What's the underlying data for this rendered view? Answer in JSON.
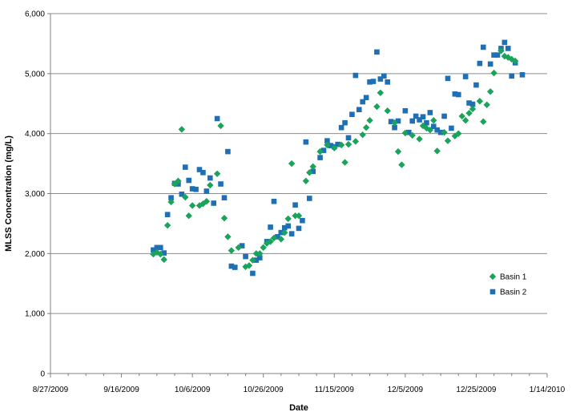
{
  "chart_data": {
    "type": "scatter",
    "title": "",
    "xlabel": "Date",
    "ylabel": "MLSS Concentration (mg/L)",
    "xlim": [
      "2009-08-27",
      "2010-01-14"
    ],
    "ylim": [
      0,
      6000
    ],
    "x_tick_labels": [
      "8/27/2009",
      "9/16/2009",
      "10/6/2009",
      "10/26/2009",
      "11/15/2009",
      "12/5/2009",
      "12/25/2009",
      "1/14/2010"
    ],
    "y_tick_labels": [
      "0",
      "1,000",
      "2,000",
      "3,000",
      "4,000",
      "5,000",
      "6,000"
    ],
    "grid": {
      "horizontal": true,
      "vertical": false
    },
    "legend_position": "right",
    "series": [
      {
        "name": "Basin 1",
        "color": "#1aa35a",
        "marker": "diamond",
        "points": [
          [
            "2009-09-25",
            1990
          ],
          [
            "2009-09-26",
            2020
          ],
          [
            "2009-09-27",
            1990
          ],
          [
            "2009-09-28",
            1900
          ],
          [
            "2009-09-29",
            2470
          ],
          [
            "2009-09-30",
            2860
          ],
          [
            "2009-10-01",
            3160
          ],
          [
            "2009-10-02",
            3210
          ],
          [
            "2009-10-03",
            4070
          ],
          [
            "2009-10-04",
            2940
          ],
          [
            "2009-10-05",
            2630
          ],
          [
            "2009-10-06",
            2800
          ],
          [
            "2009-10-08",
            2800
          ],
          [
            "2009-10-09",
            2830
          ],
          [
            "2009-10-10",
            2870
          ],
          [
            "2009-10-11",
            3140
          ],
          [
            "2009-10-13",
            3330
          ],
          [
            "2009-10-14",
            4130
          ],
          [
            "2009-10-15",
            2590
          ],
          [
            "2009-10-16",
            2280
          ],
          [
            "2009-10-17",
            2050
          ],
          [
            "2009-10-19",
            2100
          ],
          [
            "2009-10-21",
            1780
          ],
          [
            "2009-10-22",
            1800
          ],
          [
            "2009-10-23",
            1890
          ],
          [
            "2009-10-24",
            2000
          ],
          [
            "2009-10-25",
            2000
          ],
          [
            "2009-10-26",
            2100
          ],
          [
            "2009-10-27",
            2170
          ],
          [
            "2009-10-28",
            2200
          ],
          [
            "2009-10-29",
            2260
          ],
          [
            "2009-10-31",
            2240
          ],
          [
            "2009-11-01",
            2350
          ],
          [
            "2009-11-02",
            2580
          ],
          [
            "2009-11-03",
            3500
          ],
          [
            "2009-11-04",
            2630
          ],
          [
            "2009-11-05",
            2630
          ],
          [
            "2009-11-07",
            3210
          ],
          [
            "2009-11-08",
            3350
          ],
          [
            "2009-11-09",
            3450
          ],
          [
            "2009-11-11",
            3700
          ],
          [
            "2009-11-13",
            3810
          ],
          [
            "2009-11-15",
            3760
          ],
          [
            "2009-11-17",
            3810
          ],
          [
            "2009-11-18",
            3520
          ],
          [
            "2009-11-19",
            3820
          ],
          [
            "2009-11-21",
            3870
          ],
          [
            "2009-11-23",
            3980
          ],
          [
            "2009-11-24",
            4100
          ],
          [
            "2009-11-25",
            4220
          ],
          [
            "2009-11-27",
            4450
          ],
          [
            "2009-11-28",
            4680
          ],
          [
            "2009-11-30",
            4380
          ],
          [
            "2009-12-02",
            4180
          ],
          [
            "2009-12-03",
            3700
          ],
          [
            "2009-12-04",
            3480
          ],
          [
            "2009-12-05",
            4010
          ],
          [
            "2009-12-07",
            3970
          ],
          [
            "2009-12-09",
            3910
          ],
          [
            "2009-12-10",
            4130
          ],
          [
            "2009-12-11",
            4090
          ],
          [
            "2009-12-12",
            4060
          ],
          [
            "2009-12-13",
            4220
          ],
          [
            "2009-12-14",
            3710
          ],
          [
            "2009-12-16",
            4020
          ],
          [
            "2009-12-17",
            3880
          ],
          [
            "2009-12-19",
            3960
          ],
          [
            "2009-12-20",
            4000
          ],
          [
            "2009-12-21",
            4290
          ],
          [
            "2009-12-22",
            4220
          ],
          [
            "2009-12-23",
            4340
          ],
          [
            "2009-12-24",
            4410
          ],
          [
            "2009-12-26",
            4540
          ],
          [
            "2009-12-27",
            4200
          ],
          [
            "2009-12-28",
            4480
          ],
          [
            "2009-12-29",
            4700
          ],
          [
            "2009-12-30",
            5010
          ],
          [
            "2010-01-01",
            5380
          ],
          [
            "2010-01-02",
            5290
          ],
          [
            "2010-01-03",
            5270
          ],
          [
            "2010-01-04",
            5240
          ],
          [
            "2010-01-05",
            5210
          ]
        ]
      },
      {
        "name": "Basin 2",
        "color": "#1f6fb5",
        "marker": "square",
        "points": [
          [
            "2009-09-25",
            2060
          ],
          [
            "2009-09-26",
            2100
          ],
          [
            "2009-09-27",
            2100
          ],
          [
            "2009-09-28",
            2010
          ],
          [
            "2009-09-29",
            2650
          ],
          [
            "2009-09-30",
            2930
          ],
          [
            "2009-10-01",
            3170
          ],
          [
            "2009-10-02",
            3160
          ],
          [
            "2009-10-03",
            2990
          ],
          [
            "2009-10-04",
            3440
          ],
          [
            "2009-10-05",
            3220
          ],
          [
            "2009-10-06",
            3080
          ],
          [
            "2009-10-07",
            3070
          ],
          [
            "2009-10-08",
            3400
          ],
          [
            "2009-10-09",
            3350
          ],
          [
            "2009-10-10",
            3040
          ],
          [
            "2009-10-11",
            3260
          ],
          [
            "2009-10-12",
            2840
          ],
          [
            "2009-10-13",
            4250
          ],
          [
            "2009-10-14",
            3160
          ],
          [
            "2009-10-15",
            2930
          ],
          [
            "2009-10-16",
            3700
          ],
          [
            "2009-10-17",
            1790
          ],
          [
            "2009-10-18",
            1770
          ],
          [
            "2009-10-20",
            2130
          ],
          [
            "2009-10-21",
            1950
          ],
          [
            "2009-10-23",
            1670
          ],
          [
            "2009-10-24",
            1890
          ],
          [
            "2009-10-25",
            1930
          ],
          [
            "2009-10-27",
            2200
          ],
          [
            "2009-10-28",
            2440
          ],
          [
            "2009-10-29",
            2870
          ],
          [
            "2009-10-30",
            2280
          ],
          [
            "2009-10-31",
            2350
          ],
          [
            "2009-11-01",
            2430
          ],
          [
            "2009-11-02",
            2460
          ],
          [
            "2009-11-03",
            2330
          ],
          [
            "2009-11-04",
            2810
          ],
          [
            "2009-11-05",
            2420
          ],
          [
            "2009-11-06",
            2550
          ],
          [
            "2009-11-07",
            3860
          ],
          [
            "2009-11-08",
            2920
          ],
          [
            "2009-11-09",
            3370
          ],
          [
            "2009-11-11",
            3600
          ],
          [
            "2009-11-12",
            3720
          ],
          [
            "2009-11-13",
            3880
          ],
          [
            "2009-11-14",
            3800
          ],
          [
            "2009-11-15",
            3780
          ],
          [
            "2009-11-16",
            3820
          ],
          [
            "2009-11-17",
            4100
          ],
          [
            "2009-11-18",
            4180
          ],
          [
            "2009-11-19",
            3930
          ],
          [
            "2009-11-20",
            4320
          ],
          [
            "2009-11-21",
            4970
          ],
          [
            "2009-11-22",
            4400
          ],
          [
            "2009-11-23",
            4530
          ],
          [
            "2009-11-24",
            4600
          ],
          [
            "2009-11-25",
            4860
          ],
          [
            "2009-11-26",
            4870
          ],
          [
            "2009-11-27",
            5360
          ],
          [
            "2009-11-28",
            4910
          ],
          [
            "2009-11-29",
            4960
          ],
          [
            "2009-11-30",
            4860
          ],
          [
            "2009-12-01",
            4200
          ],
          [
            "2009-12-02",
            4100
          ],
          [
            "2009-12-03",
            4210
          ],
          [
            "2009-12-05",
            4380
          ],
          [
            "2009-12-06",
            4020
          ],
          [
            "2009-12-07",
            4210
          ],
          [
            "2009-12-08",
            4290
          ],
          [
            "2009-12-09",
            4230
          ],
          [
            "2009-12-10",
            4280
          ],
          [
            "2009-12-11",
            4180
          ],
          [
            "2009-12-12",
            4350
          ],
          [
            "2009-12-13",
            4120
          ],
          [
            "2009-12-14",
            4060
          ],
          [
            "2009-12-15",
            4020
          ],
          [
            "2009-12-16",
            4290
          ],
          [
            "2009-12-17",
            4920
          ],
          [
            "2009-12-18",
            4090
          ],
          [
            "2009-12-19",
            4660
          ],
          [
            "2009-12-20",
            4650
          ],
          [
            "2009-12-22",
            4950
          ],
          [
            "2009-12-23",
            4510
          ],
          [
            "2009-12-24",
            4490
          ],
          [
            "2009-12-25",
            4810
          ],
          [
            "2009-12-26",
            5170
          ],
          [
            "2009-12-27",
            5440
          ],
          [
            "2009-12-29",
            5160
          ],
          [
            "2009-12-30",
            5310
          ],
          [
            "2009-12-31",
            5310
          ],
          [
            "2010-01-01",
            5420
          ],
          [
            "2010-01-02",
            5520
          ],
          [
            "2010-01-03",
            5420
          ],
          [
            "2010-01-04",
            4960
          ],
          [
            "2010-01-05",
            5180
          ],
          [
            "2010-01-07",
            4980
          ]
        ]
      }
    ]
  }
}
